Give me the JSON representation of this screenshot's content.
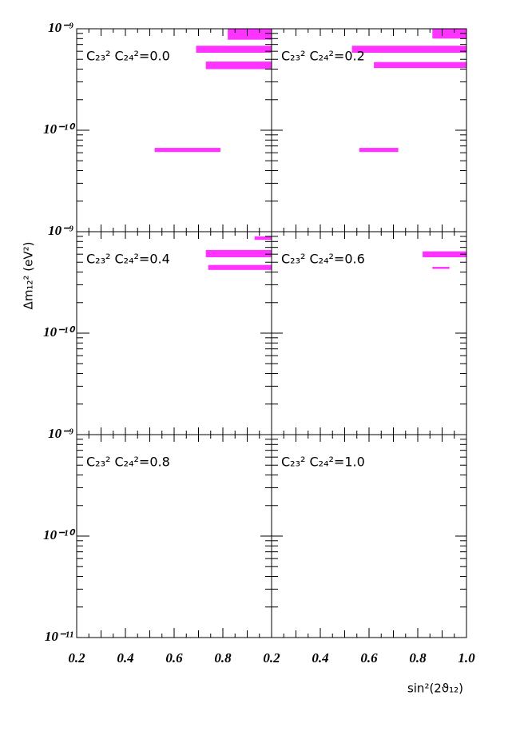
{
  "x_label": "sin²(2ϑ₁₂)",
  "y_label": "Δm₁₂² (eV²)",
  "chart_data": [
    {
      "type": "region",
      "label": "C₂₃² C₂₄²=0.0",
      "color": "#ff33ff",
      "log_y": true,
      "xlim": [
        0.2,
        1.0
      ],
      "ylim": [
        1e-11,
        1e-09
      ],
      "yticks": [
        {
          "value": 1e-09,
          "label": "10⁻⁹"
        },
        {
          "value": 1e-10,
          "label": "10⁻¹⁰"
        }
      ],
      "regions": [
        {
          "x": [
            0.82,
            1.0
          ],
          "y": [
            7.8e-10,
            1e-09
          ]
        },
        {
          "x": [
            0.69,
            1.0
          ],
          "y": [
            5.8e-10,
            6.8e-10
          ]
        },
        {
          "x": [
            0.73,
            1.0
          ],
          "y": [
            4e-10,
            4.75e-10
          ]
        },
        {
          "x": [
            0.52,
            0.79
          ],
          "y": [
            6.1e-11,
            6.7e-11
          ]
        }
      ]
    },
    {
      "type": "region",
      "label": "C₂₃² C₂₄²=0.2",
      "color": "#ff33ff",
      "log_y": true,
      "xlim": [
        0.2,
        1.0
      ],
      "ylim": [
        1e-11,
        1e-09
      ],
      "regions": [
        {
          "x": [
            0.86,
            1.0
          ],
          "y": [
            8e-10,
            1e-09
          ]
        },
        {
          "x": [
            0.53,
            1.0
          ],
          "y": [
            5.8e-10,
            6.8e-10
          ]
        },
        {
          "x": [
            0.62,
            1.0
          ],
          "y": [
            4.1e-10,
            4.7e-10
          ]
        },
        {
          "x": [
            0.56,
            0.72
          ],
          "y": [
            6.1e-11,
            6.7e-11
          ]
        }
      ]
    },
    {
      "type": "region",
      "label": "C₂₃² C₂₄²=0.4",
      "color": "#ff33ff",
      "log_y": true,
      "xlim": [
        0.2,
        1.0
      ],
      "ylim": [
        1e-11,
        1e-09
      ],
      "yticks": [
        {
          "value": 1e-09,
          "label": "10⁻⁹"
        },
        {
          "value": 1e-10,
          "label": "10⁻¹⁰"
        }
      ],
      "regions": [
        {
          "x": [
            0.93,
            1.0
          ],
          "y": [
            8.3e-10,
            9e-10
          ]
        },
        {
          "x": [
            0.73,
            1.0
          ],
          "y": [
            5.6e-10,
            6.6e-10
          ]
        },
        {
          "x": [
            0.74,
            1.0
          ],
          "y": [
            4.2e-10,
            4.7e-10
          ]
        }
      ]
    },
    {
      "type": "region",
      "label": "C₂₃² C₂₄²=0.6",
      "color": "#ff33ff",
      "log_y": true,
      "xlim": [
        0.2,
        1.0
      ],
      "ylim": [
        1e-11,
        1e-09
      ],
      "regions": [
        {
          "x": [
            0.82,
            1.0
          ],
          "y": [
            5.6e-10,
            6.4e-10
          ]
        },
        {
          "x": [
            0.86,
            0.93
          ],
          "y": [
            4.3e-10,
            4.5e-10
          ]
        }
      ]
    },
    {
      "type": "region",
      "label": "C₂₃² C₂₄²=0.8",
      "color": "#ff33ff",
      "log_y": true,
      "xlim": [
        0.2,
        1.0
      ],
      "ylim": [
        1e-11,
        1e-09
      ],
      "yticks": [
        {
          "value": 1e-09,
          "label": "10⁻⁹"
        },
        {
          "value": 1e-10,
          "label": "10⁻¹⁰"
        },
        {
          "value": 1e-11,
          "label": "10⁻¹¹"
        }
      ],
      "xticks": [
        0.2,
        0.4,
        0.6,
        0.8
      ],
      "regions": []
    },
    {
      "type": "region",
      "label": "C₂₃² C₂₄²=1.0",
      "color": "#ff33ff",
      "log_y": true,
      "xlim": [
        0.2,
        1.0
      ],
      "ylim": [
        1e-11,
        1e-09
      ],
      "xticks": [
        0.2,
        0.4,
        0.6,
        0.8,
        {
          "value": 1.0,
          "label": "1.0"
        }
      ],
      "regions": []
    }
  ]
}
